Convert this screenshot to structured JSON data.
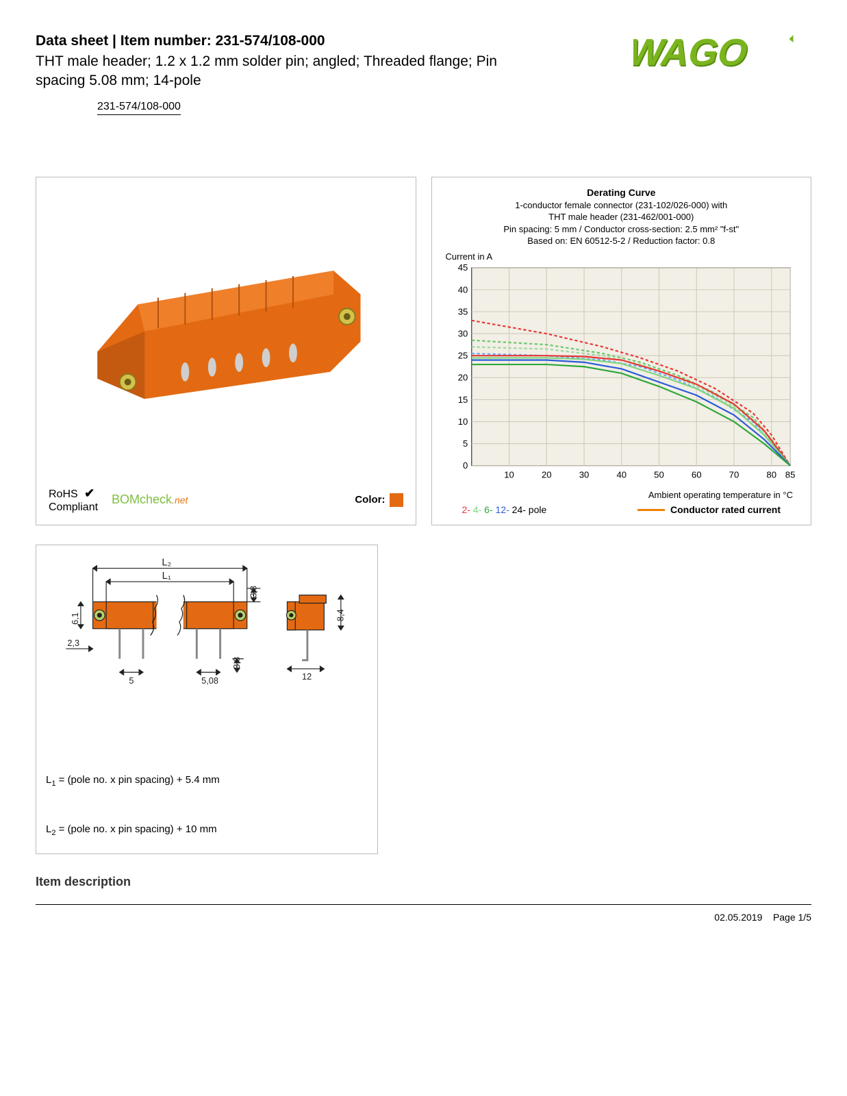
{
  "header": {
    "title_prefix": "Data sheet",
    "title_sep": "  |  ",
    "title_item_label": "Item number:",
    "item_number": "231-574/108-000",
    "subtitle": "THT male header; 1.2 x 1.2 mm solder pin; angled; Threaded flange; Pin spacing 5.08 mm; 14-pole",
    "item_pill": "231-574/108-000"
  },
  "logo": {
    "text": "WAGO",
    "fill": "#7ab51d",
    "shadow": "#5a8a14"
  },
  "product_image": {
    "body_color": "#e36a12",
    "body_shadow": "#b0520e",
    "pin_color": "#c8c8c8",
    "flange_color": "#d4c24a"
  },
  "compliance": {
    "rohs_line1": "RoHS",
    "rohs_line2": "Compliant",
    "bomcheck": "BOMcheck",
    "bomcheck_suffix": ".net",
    "color_label": "Color:",
    "swatch_color": "#e36a12"
  },
  "derating_chart": {
    "title": "Derating Curve",
    "desc_lines": [
      "1-conductor female connector (231-102/026-000) with",
      "THT male header (231-462/001-000)",
      "Pin spacing: 5 mm / Conductor cross-section: 2.5 mm² \"f-st\"",
      "Based on: EN 60512-5-2 / Reduction factor: 0.8"
    ],
    "y_label": "Current in A",
    "x_label": "Ambient operating temperature in °C",
    "ylim": [
      0,
      45
    ],
    "ytick_step": 5,
    "xlim": [
      0,
      85
    ],
    "xticks": [
      10,
      20,
      30,
      40,
      50,
      60,
      70,
      80,
      85
    ],
    "background": "#f2efe6",
    "grid_color": "#cfcabb",
    "series": [
      {
        "name": "2-pole",
        "color": "#e53935",
        "dash": "4 3",
        "points": [
          [
            0,
            33
          ],
          [
            20,
            30
          ],
          [
            35,
            27
          ],
          [
            45,
            24.5
          ],
          [
            55,
            21.5
          ],
          [
            65,
            17.5
          ],
          [
            75,
            12
          ],
          [
            80,
            7
          ],
          [
            85,
            0
          ]
        ]
      },
      {
        "name": "4-pole",
        "color": "#66c966",
        "dash": "4 3",
        "points": [
          [
            0,
            28.5
          ],
          [
            20,
            27.5
          ],
          [
            35,
            25.5
          ],
          [
            45,
            23.5
          ],
          [
            55,
            20.5
          ],
          [
            65,
            16.5
          ],
          [
            75,
            11
          ],
          [
            80,
            6
          ],
          [
            85,
            0
          ]
        ]
      },
      {
        "name": "6-pole",
        "color": "#9ed89e",
        "dash": "4 3",
        "points": [
          [
            0,
            27
          ],
          [
            20,
            26.5
          ],
          [
            35,
            25
          ],
          [
            45,
            23
          ],
          [
            55,
            20
          ],
          [
            65,
            16
          ],
          [
            75,
            10.5
          ],
          [
            80,
            5.5
          ],
          [
            85,
            0
          ]
        ]
      },
      {
        "name": "12-pole",
        "color": "#6fa8f7",
        "dash": "4 3",
        "points": [
          [
            0,
            25.5
          ],
          [
            20,
            25
          ],
          [
            35,
            24
          ],
          [
            45,
            22.5
          ],
          [
            55,
            19.5
          ],
          [
            65,
            15.5
          ],
          [
            75,
            10
          ],
          [
            80,
            5
          ],
          [
            85,
            0
          ]
        ]
      },
      {
        "name": "2-solid",
        "color": "#e53935",
        "dash": "",
        "points": [
          [
            0,
            25
          ],
          [
            20,
            25
          ],
          [
            30,
            24.8
          ],
          [
            40,
            24
          ],
          [
            50,
            21.5
          ],
          [
            60,
            18.5
          ],
          [
            70,
            14
          ],
          [
            78,
            8
          ],
          [
            85,
            0
          ]
        ]
      },
      {
        "name": "4-solid",
        "color": "#7fd47f",
        "dash": "",
        "points": [
          [
            0,
            24.5
          ],
          [
            20,
            24.5
          ],
          [
            30,
            24.2
          ],
          [
            40,
            23.2
          ],
          [
            50,
            20.5
          ],
          [
            60,
            17.5
          ],
          [
            70,
            13
          ],
          [
            78,
            7
          ],
          [
            85,
            0
          ]
        ]
      },
      {
        "name": "12-solid",
        "color": "#2a5bd7",
        "dash": "",
        "points": [
          [
            0,
            24
          ],
          [
            20,
            24
          ],
          [
            30,
            23.5
          ],
          [
            40,
            22
          ],
          [
            50,
            19
          ],
          [
            60,
            16
          ],
          [
            70,
            11.5
          ],
          [
            78,
            6
          ],
          [
            85,
            0
          ]
        ]
      },
      {
        "name": "24-solid",
        "color": "#2fa839",
        "dash": "",
        "points": [
          [
            0,
            23
          ],
          [
            20,
            23
          ],
          [
            30,
            22.5
          ],
          [
            40,
            21
          ],
          [
            50,
            18
          ],
          [
            60,
            14.5
          ],
          [
            70,
            10
          ],
          [
            78,
            5
          ],
          [
            85,
            0
          ]
        ]
      }
    ],
    "legend_poles": [
      {
        "t": "2-",
        "c": "#e53935"
      },
      {
        "t": " 4-",
        "c": "#7fd47f"
      },
      {
        "t": " 6-",
        "c": "#2fa839"
      },
      {
        "t": " 12-",
        "c": "#2a5bd7"
      },
      {
        "t": " 24-",
        "c": "#000"
      },
      {
        "t": " pole",
        "c": "#000"
      }
    ],
    "legend_crc": "Conductor rated current"
  },
  "dimensions": {
    "body_color": "#e36a12",
    "outline": "#222",
    "pin_color": "#888",
    "flange": "#b6cf6a",
    "labels": {
      "L1": "L₁",
      "L2": "L₂",
      "h": "6,1",
      "top": "3,8",
      "bot": "3,8",
      "left": "2,3",
      "sp1": "5",
      "sp2": "5,08",
      "side_h": "8,4",
      "side_w": "12"
    },
    "formula1_pre": "L",
    "formula1_sub": "1",
    "formula1_post": " = (pole no. x pin spacing) + 5.4 mm",
    "formula2_pre": "L",
    "formula2_sub": "2",
    "formula2_post": " = (pole no. x pin spacing) + 10 mm"
  },
  "sections": {
    "item_description": "Item description"
  },
  "footer": {
    "date": "02.05.2019",
    "page": "Page 1/5"
  }
}
